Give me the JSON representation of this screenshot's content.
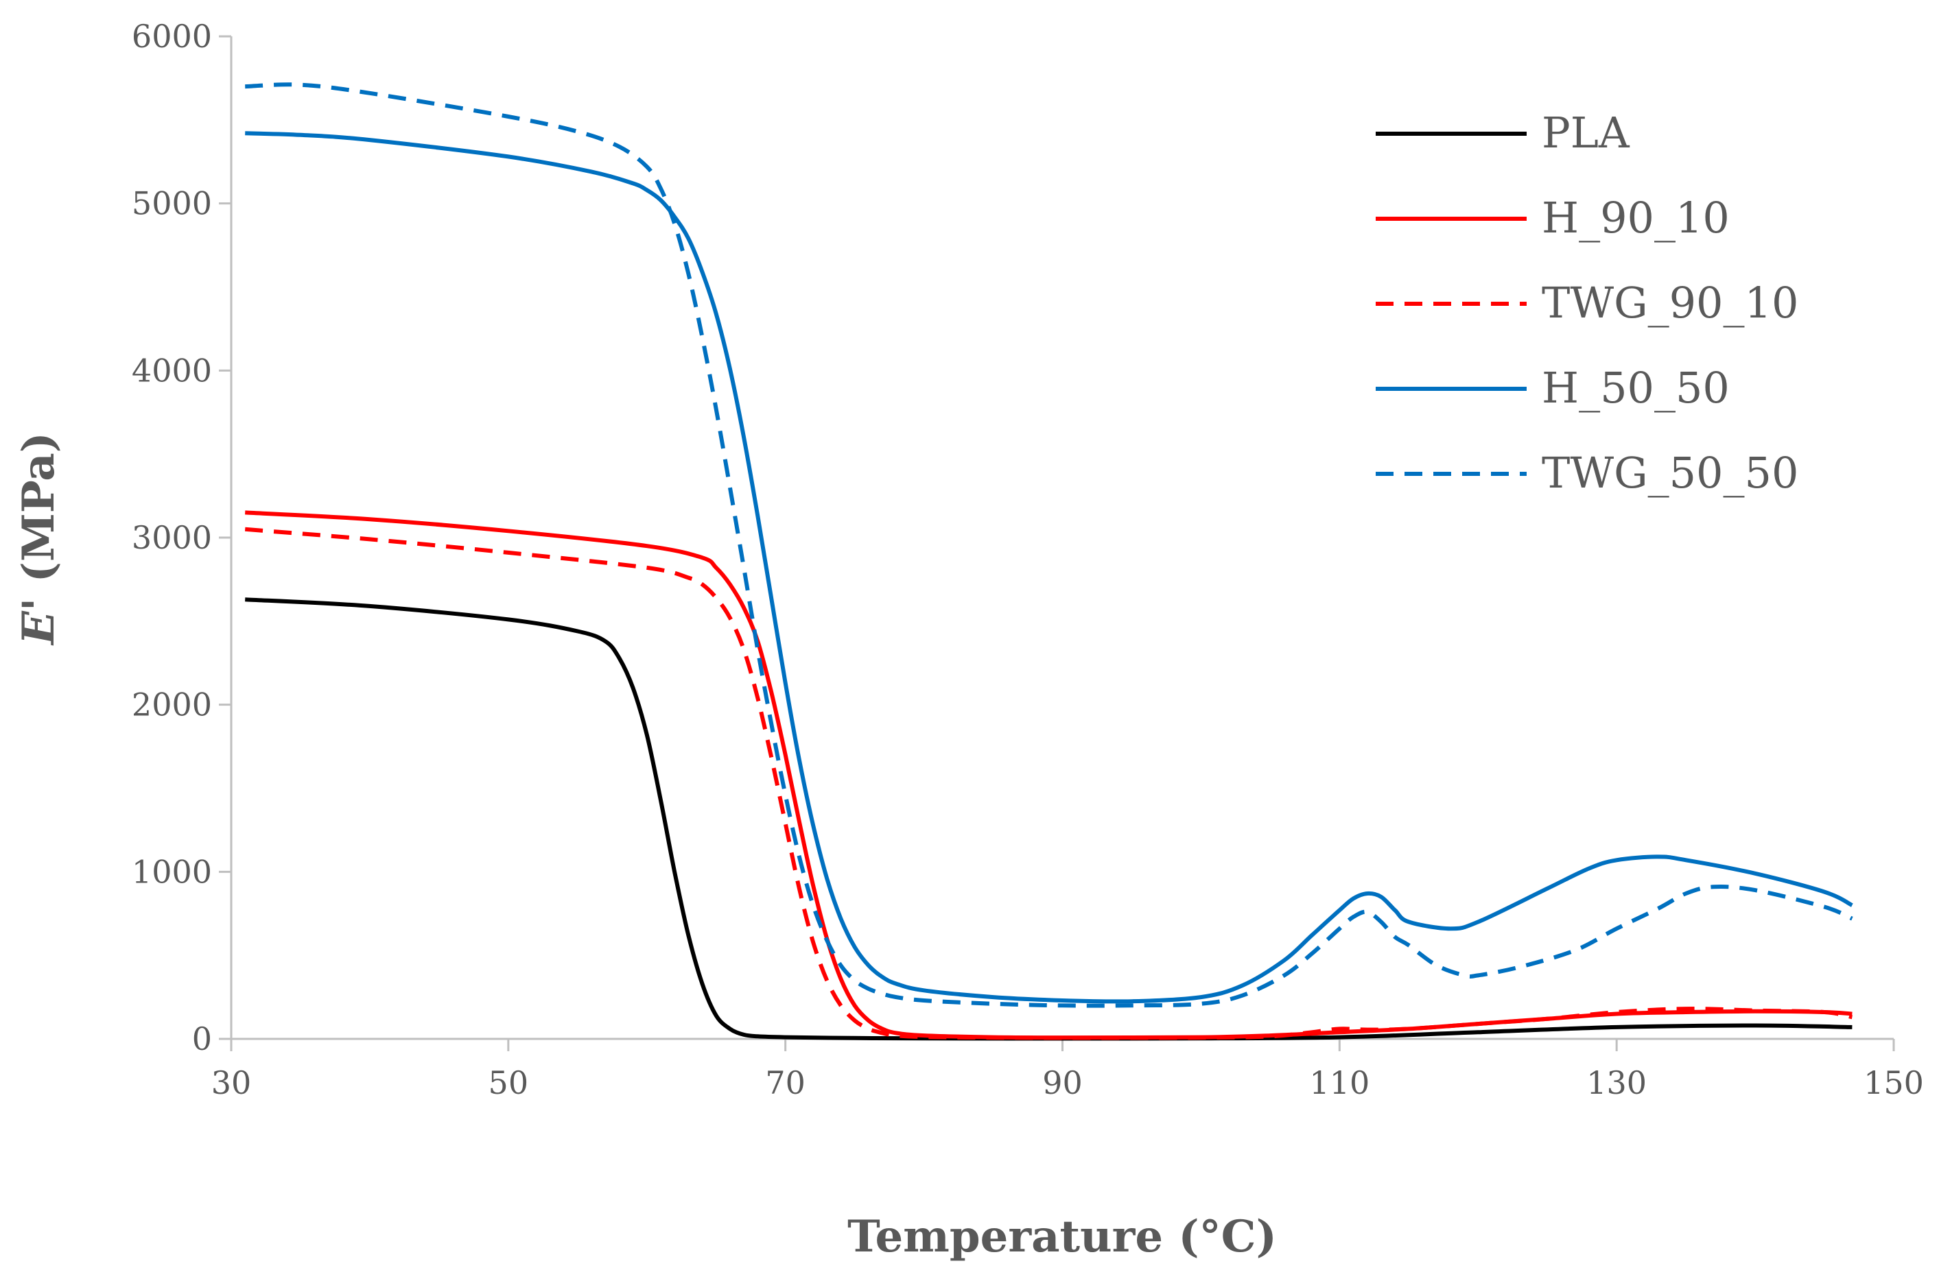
{
  "chart_data": {
    "type": "line",
    "title": "",
    "xlabel": "Temperature (°C)",
    "ylabel_italic": "E'",
    "ylabel_rest": " (MPa)",
    "xlim": [
      30,
      150
    ],
    "ylim": [
      0,
      6000
    ],
    "x_ticks": [
      30,
      50,
      70,
      90,
      110,
      130,
      150
    ],
    "y_ticks": [
      0,
      1000,
      2000,
      3000,
      4000,
      5000,
      6000
    ],
    "x_tick_labels": [
      "30",
      "50",
      "70",
      "90",
      "110",
      "130",
      "150"
    ],
    "y_tick_labels": [
      "0",
      "1000",
      "2000",
      "3000",
      "4000",
      "5000",
      "6000"
    ],
    "legend_position": "top-right",
    "grid": false,
    "series": [
      {
        "name": "PLA",
        "color": "#000000",
        "dash": "solid",
        "x": [
          31,
          40,
          50,
          55,
          57,
          58,
          59,
          60,
          61,
          62,
          63,
          64,
          65,
          66,
          67,
          68,
          70,
          75,
          80,
          90,
          100,
          110,
          120,
          130,
          140,
          147
        ],
        "y": [
          2630,
          2590,
          2510,
          2440,
          2380,
          2280,
          2100,
          1820,
          1430,
          1000,
          620,
          330,
          140,
          60,
          25,
          15,
          10,
          5,
          3,
          2,
          3,
          10,
          40,
          70,
          80,
          70
        ]
      },
      {
        "name": "H_90_10",
        "color": "#ff0000",
        "dash": "solid",
        "x": [
          31,
          40,
          50,
          60,
          64,
          65,
          66,
          67,
          68,
          69,
          70,
          71,
          72,
          73,
          74,
          75,
          76,
          77,
          78,
          80,
          85,
          90,
          100,
          105,
          110,
          115,
          120,
          125,
          130,
          135,
          140,
          145,
          147
        ],
        "y": [
          3150,
          3110,
          3040,
          2950,
          2880,
          2820,
          2720,
          2580,
          2380,
          2070,
          1700,
          1300,
          920,
          600,
          360,
          200,
          110,
          60,
          35,
          20,
          10,
          8,
          10,
          20,
          40,
          60,
          90,
          120,
          150,
          160,
          165,
          160,
          150
        ]
      },
      {
        "name": "TWG_90_10",
        "color": "#ff0000",
        "dash": "dashed",
        "x": [
          31,
          40,
          50,
          60,
          63,
          64,
          65,
          66,
          67,
          68,
          69,
          70,
          71,
          72,
          73,
          74,
          75,
          76,
          77,
          78,
          80,
          85,
          90,
          100,
          105,
          108,
          110,
          112,
          115,
          120,
          125,
          130,
          135,
          140,
          145,
          147
        ],
        "y": [
          3050,
          2990,
          2910,
          2820,
          2760,
          2720,
          2640,
          2520,
          2330,
          2040,
          1680,
          1290,
          900,
          580,
          350,
          200,
          110,
          60,
          35,
          20,
          12,
          8,
          6,
          8,
          15,
          40,
          60,
          55,
          60,
          90,
          120,
          160,
          180,
          170,
          160,
          130
        ]
      },
      {
        "name": "H_50_50",
        "color": "#0070c0",
        "dash": "solid",
        "x": [
          31,
          35,
          40,
          50,
          56,
          59,
          60,
          61,
          62,
          63,
          64,
          65,
          66,
          67,
          68,
          69,
          70,
          71,
          72,
          73,
          74,
          75,
          76,
          77,
          78,
          80,
          85,
          90,
          95,
          100,
          103,
          106,
          108,
          110,
          111,
          112,
          113,
          114,
          115,
          118,
          120,
          125,
          128,
          130,
          133,
          135,
          140,
          145,
          147
        ],
        "y": [
          5420,
          5410,
          5380,
          5280,
          5190,
          5120,
          5080,
          5020,
          4920,
          4790,
          4590,
          4340,
          4010,
          3600,
          3130,
          2630,
          2130,
          1670,
          1280,
          960,
          720,
          550,
          440,
          370,
          330,
          290,
          250,
          230,
          225,
          250,
          320,
          470,
          620,
          770,
          840,
          870,
          850,
          770,
          700,
          660,
          700,
          900,
          1020,
          1070,
          1090,
          1070,
          990,
          880,
          800
        ]
      },
      {
        "name": "TWG_50_50",
        "color": "#0070c0",
        "dash": "dashed",
        "x": [
          31,
          35,
          40,
          50,
          55,
          58,
          60,
          61,
          62,
          63,
          64,
          65,
          66,
          67,
          68,
          69,
          70,
          71,
          72,
          73,
          74,
          75,
          76,
          77,
          78,
          80,
          85,
          90,
          95,
          100,
          103,
          106,
          108,
          110,
          111,
          112,
          113,
          114,
          115,
          117,
          119,
          120,
          123,
          127,
          130,
          133,
          135,
          137,
          140,
          145,
          147
        ],
        "y": [
          5700,
          5710,
          5660,
          5520,
          5430,
          5340,
          5220,
          5090,
          4880,
          4580,
          4200,
          3770,
          3300,
          2820,
          2330,
          1880,
          1460,
          1090,
          800,
          590,
          440,
          350,
          300,
          270,
          250,
          230,
          210,
          200,
          200,
          210,
          260,
          380,
          510,
          660,
          730,
          760,
          700,
          610,
          560,
          440,
          380,
          380,
          430,
          530,
          660,
          780,
          870,
          910,
          890,
          790,
          720
        ]
      }
    ]
  }
}
